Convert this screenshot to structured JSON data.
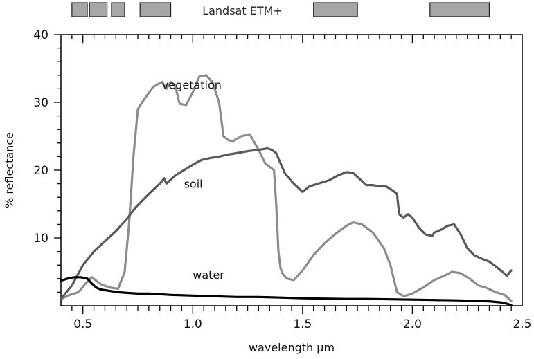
{
  "chart_data": {
    "type": "line",
    "title": "",
    "xlabel": "wavelength μm",
    "ylabel": "% reflectance",
    "xlim": [
      0.4,
      2.5
    ],
    "ylim": [
      0,
      40
    ],
    "x_ticks": [
      0.5,
      1.0,
      1.5,
      2.0,
      2.5
    ],
    "x_tick_labels": [
      "0.5",
      "1.0",
      "1.5",
      "2.0",
      "2.5"
    ],
    "y_ticks": [
      10,
      20,
      30,
      40
    ],
    "y_tick_labels": [
      "10",
      "20",
      "30",
      "40"
    ],
    "grid": false,
    "legend": "none",
    "bands": {
      "label": "Landsat ETM+",
      "ranges": [
        [
          0.45,
          0.52
        ],
        [
          0.53,
          0.61
        ],
        [
          0.63,
          0.69
        ],
        [
          0.76,
          0.9
        ],
        [
          1.55,
          1.75
        ],
        [
          2.08,
          2.35
        ]
      ],
      "color": "#a6a6a6"
    },
    "series": [
      {
        "name": "vegetation",
        "color": "#8c8c8c",
        "label_at": [
          0.86,
          32.0
        ],
        "x": [
          0.4,
          0.44,
          0.48,
          0.51,
          0.54,
          0.58,
          0.62,
          0.66,
          0.69,
          0.71,
          0.73,
          0.75,
          0.78,
          0.82,
          0.86,
          0.88,
          0.9,
          0.92,
          0.94,
          0.97,
          1.0,
          1.03,
          1.06,
          1.09,
          1.12,
          1.14,
          1.16,
          1.18,
          1.22,
          1.26,
          1.3,
          1.33,
          1.35,
          1.37,
          1.38,
          1.39,
          1.4,
          1.41,
          1.42,
          1.43,
          1.46,
          1.5,
          1.55,
          1.6,
          1.65,
          1.7,
          1.73,
          1.77,
          1.82,
          1.87,
          1.9,
          1.93,
          1.96,
          2.0,
          2.05,
          2.1,
          2.15,
          2.18,
          2.22,
          2.26,
          2.3,
          2.34,
          2.38,
          2.42,
          2.45
        ],
        "y": [
          1.0,
          1.6,
          2.0,
          3.2,
          4.2,
          3.2,
          2.7,
          2.5,
          5.0,
          12.0,
          22.0,
          29.0,
          30.5,
          32.3,
          33.0,
          32.0,
          33.0,
          32.5,
          29.8,
          29.6,
          31.5,
          33.8,
          34.0,
          33.0,
          30.0,
          25.0,
          24.5,
          24.2,
          25.0,
          25.3,
          23.0,
          21.0,
          20.5,
          20.0,
          15.0,
          8.0,
          5.5,
          4.7,
          4.3,
          4.0,
          3.8,
          5.2,
          7.5,
          9.2,
          10.6,
          11.8,
          12.3,
          12.0,
          10.8,
          8.5,
          6.0,
          2.0,
          1.4,
          1.8,
          2.7,
          3.8,
          4.5,
          5.0,
          4.8,
          4.0,
          3.0,
          2.6,
          2.0,
          1.6,
          0.7
        ]
      },
      {
        "name": "soil",
        "color": "#595959",
        "label_at": [
          0.96,
          17.4
        ],
        "x": [
          0.4,
          0.45,
          0.5,
          0.55,
          0.6,
          0.65,
          0.7,
          0.74,
          0.77,
          0.81,
          0.85,
          0.87,
          0.88,
          0.92,
          0.96,
          1.0,
          1.04,
          1.08,
          1.12,
          1.16,
          1.2,
          1.25,
          1.3,
          1.34,
          1.36,
          1.38,
          1.4,
          1.42,
          1.46,
          1.5,
          1.53,
          1.57,
          1.62,
          1.66,
          1.7,
          1.73,
          1.76,
          1.79,
          1.82,
          1.85,
          1.88,
          1.91,
          1.93,
          1.94,
          1.96,
          1.98,
          2.0,
          2.03,
          2.06,
          2.09,
          2.1,
          2.13,
          2.16,
          2.19,
          2.22,
          2.25,
          2.28,
          2.31,
          2.35,
          2.38,
          2.41,
          2.43,
          2.45
        ],
        "y": [
          1.0,
          3.0,
          6.0,
          8.0,
          9.5,
          11.0,
          12.8,
          14.5,
          15.5,
          16.8,
          18.0,
          18.8,
          18.0,
          19.2,
          20.0,
          20.8,
          21.5,
          21.8,
          22.0,
          22.3,
          22.5,
          22.8,
          23.0,
          23.2,
          23.0,
          22.5,
          21.0,
          19.5,
          18.0,
          16.8,
          17.6,
          18.0,
          18.5,
          19.2,
          19.7,
          19.6,
          18.7,
          17.8,
          17.8,
          17.6,
          17.6,
          17.0,
          16.5,
          13.5,
          13.0,
          13.5,
          13.0,
          11.5,
          10.5,
          10.3,
          10.8,
          11.2,
          11.8,
          12.0,
          10.5,
          8.5,
          7.5,
          7.0,
          6.5,
          5.8,
          5.0,
          4.4,
          5.2
        ]
      },
      {
        "name": "water",
        "color": "#000000",
        "label_at": [
          1.0,
          4.0
        ],
        "x": [
          0.4,
          0.43,
          0.46,
          0.49,
          0.52,
          0.54,
          0.56,
          0.58,
          0.62,
          0.66,
          0.7,
          0.75,
          0.8,
          0.85,
          0.9,
          1.0,
          1.1,
          1.2,
          1.3,
          1.4,
          1.5,
          1.6,
          1.7,
          1.8,
          1.9,
          2.0,
          2.1,
          2.2,
          2.3,
          2.35,
          2.4,
          2.43,
          2.45
        ],
        "y": [
          3.7,
          4.0,
          4.2,
          4.2,
          4.0,
          3.3,
          2.7,
          2.4,
          2.2,
          2.0,
          1.9,
          1.8,
          1.8,
          1.7,
          1.6,
          1.5,
          1.4,
          1.3,
          1.3,
          1.2,
          1.1,
          1.05,
          1.0,
          1.0,
          0.95,
          0.9,
          0.85,
          0.8,
          0.7,
          0.65,
          0.5,
          0.3,
          0.1
        ]
      }
    ]
  }
}
